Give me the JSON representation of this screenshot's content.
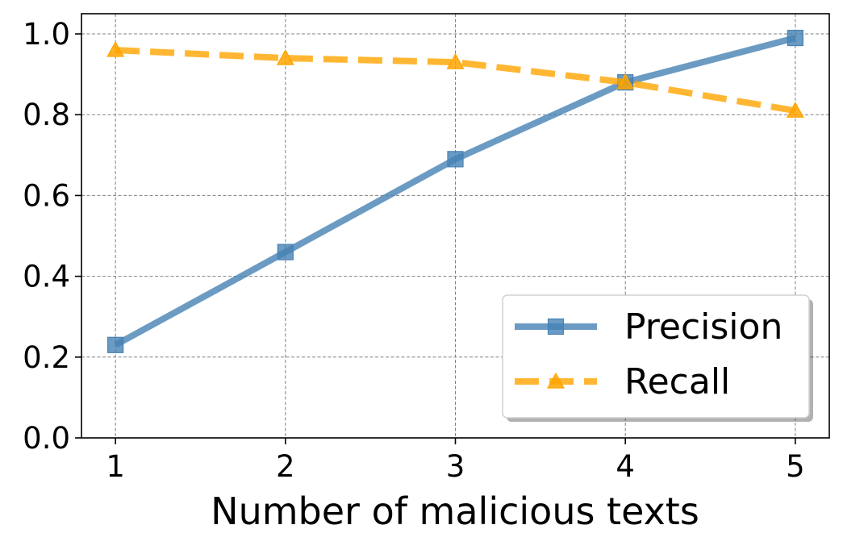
{
  "chart_data": {
    "type": "line",
    "title": "",
    "xlabel": "Number of malicious texts",
    "ylabel": "",
    "x": [
      1,
      2,
      3,
      4,
      5
    ],
    "xticks": [
      "1",
      "2",
      "3",
      "4",
      "5"
    ],
    "xlim": [
      0.8,
      5.2
    ],
    "yticks": [
      "0.0",
      "0.2",
      "0.4",
      "0.6",
      "0.8",
      "1.0"
    ],
    "ylim": [
      0.0,
      1.05
    ],
    "grid": true,
    "legend_position": "lower-right",
    "series": [
      {
        "name": "Precision",
        "values": [
          0.23,
          0.46,
          0.69,
          0.88,
          0.99
        ],
        "color": "#4682b4",
        "marker": "square",
        "line_style": "solid"
      },
      {
        "name": "Recall",
        "values": [
          0.96,
          0.94,
          0.93,
          0.88,
          0.81
        ],
        "color": "#ffa500",
        "marker": "triangle",
        "line_style": "dashed"
      }
    ]
  }
}
